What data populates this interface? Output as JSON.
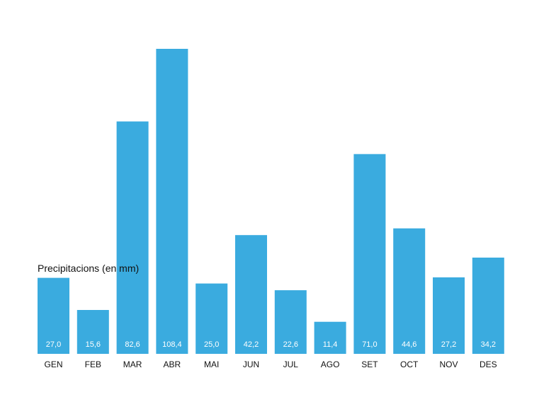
{
  "chart_data": {
    "type": "bar",
    "title": "Precipitacions (en mm)",
    "xlabel": "",
    "ylabel": "",
    "categories": [
      "GEN",
      "FEB",
      "MAR",
      "ABR",
      "MAI",
      "JUN",
      "JUL",
      "AGO",
      "SET",
      "OCT",
      "NOV",
      "DES"
    ],
    "values": [
      27.0,
      15.6,
      82.6,
      108.4,
      25.0,
      42.2,
      22.6,
      11.4,
      71.0,
      44.6,
      27.2,
      34.2
    ],
    "value_labels": [
      "27,0",
      "15,6",
      "82,6",
      "108,4",
      "25,0",
      "42,2",
      "22,6",
      "11,4",
      "71,0",
      "44,6",
      "27,2",
      "34,2"
    ],
    "ylim": [
      0,
      108.4
    ],
    "grid": false,
    "legend": "none",
    "bar_color": "#3aabdf"
  }
}
